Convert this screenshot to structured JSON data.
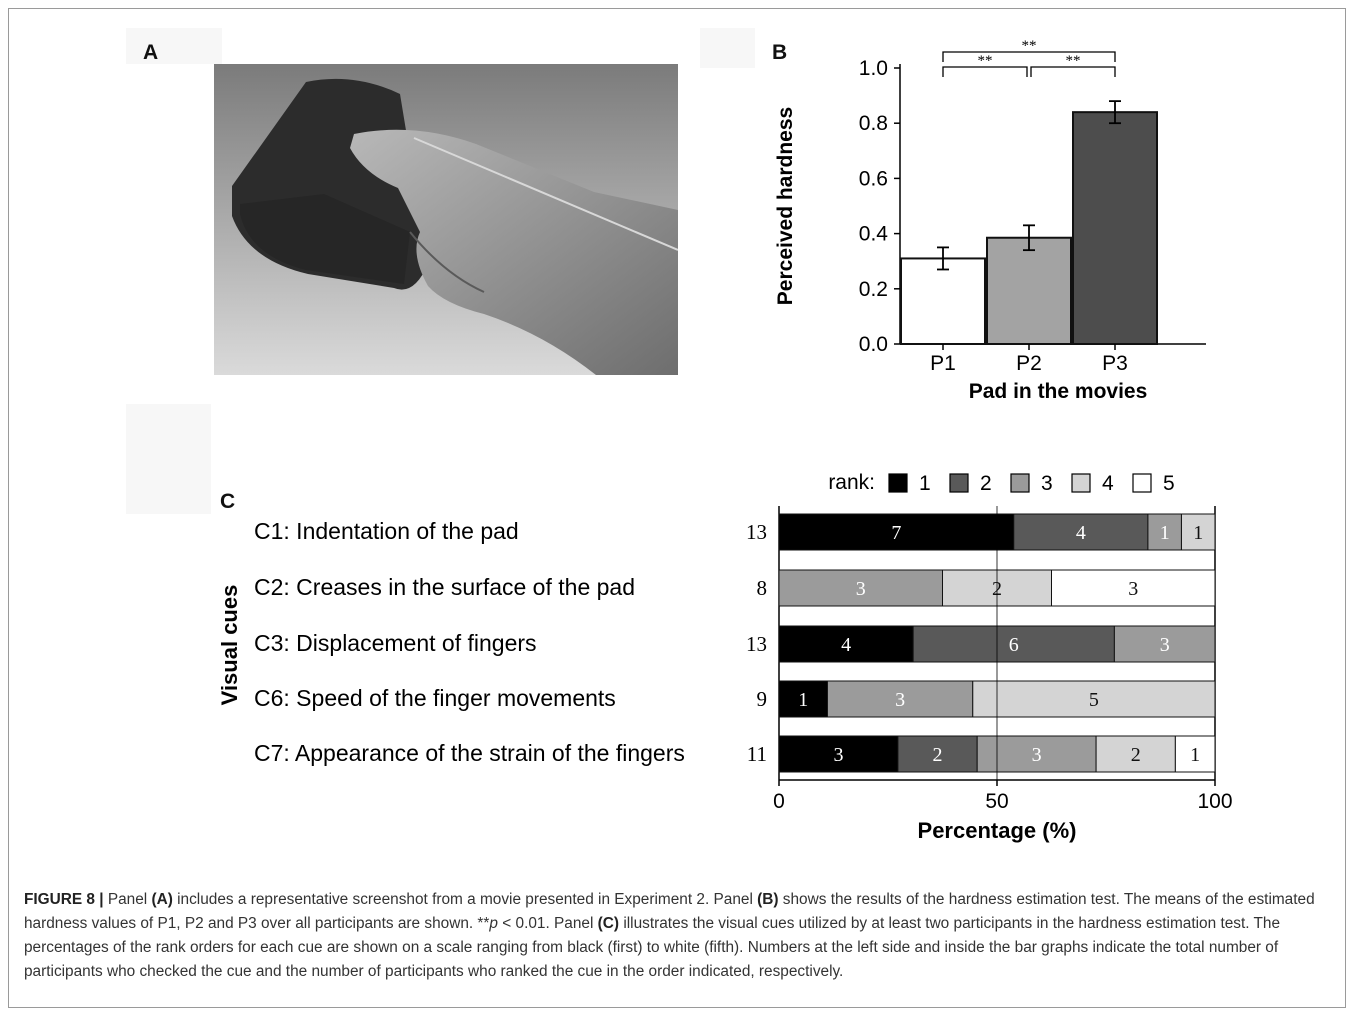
{
  "figure": {
    "panel_a_letter": "A",
    "panel_b_letter": "B",
    "panel_c_letter": "C"
  },
  "chart_data": [
    {
      "type": "bar",
      "panel": "B",
      "categories": [
        "P1",
        "P2",
        "P3"
      ],
      "values": [
        0.31,
        0.385,
        0.84
      ],
      "errors": [
        0.04,
        0.045,
        0.04
      ],
      "bar_colors": [
        "#ffffff",
        "#a3a3a3",
        "#4d4d4d"
      ],
      "xlabel": "Pad in the movies",
      "ylabel": "Perceived hardness",
      "ylim": [
        0,
        1.0
      ],
      "yticks": [
        "0.0",
        "0.2",
        "0.4",
        "0.6",
        "0.8",
        "1.0"
      ],
      "significance": [
        {
          "from": "P1",
          "to": "P2",
          "label": "**"
        },
        {
          "from": "P2",
          "to": "P3",
          "label": "**"
        },
        {
          "from": "P1",
          "to": "P3",
          "label": "**"
        }
      ]
    },
    {
      "type": "bar",
      "panel": "C",
      "orientation": "horizontal-stacked",
      "categories": [
        "C1: Indentation of the pad",
        "C2: Creases in the surface of the pad",
        "C3: Displacement of fingers",
        "C6: Speed of the finger movements",
        "C7: Appearance of the strain of the fingers"
      ],
      "totals": [
        13,
        8,
        13,
        9,
        11
      ],
      "counts": [
        [
          7,
          4,
          1,
          1,
          0
        ],
        [
          0,
          0,
          3,
          2,
          3
        ],
        [
          4,
          6,
          3,
          0,
          0
        ],
        [
          1,
          0,
          3,
          5,
          0
        ],
        [
          3,
          2,
          3,
          2,
          1
        ]
      ],
      "legend_title": "rank:",
      "legend_labels": [
        "1",
        "2",
        "3",
        "4",
        "5"
      ],
      "rank_colors": [
        "#000000",
        "#595959",
        "#9b9b9b",
        "#d4d4d4",
        "#ffffff"
      ],
      "ylabel": "Visual cues",
      "xlabel": "Percentage (%)",
      "xlim": [
        0,
        100
      ],
      "xticks": [
        "0",
        "50",
        "100"
      ]
    }
  ],
  "caption": {
    "figure_label": "FIGURE 8 |",
    "s1": " Panel ",
    "a": "(A)",
    "s2": " includes a representative screenshot from a movie presented in Experiment 2. Panel ",
    "b": "(B)",
    "s3": " shows the results of the hardness estimation test. The means of the estimated hardness values of P1, P2 and P3 over all participants are shown. **",
    "p": "p",
    "s4": " < 0.01. Panel ",
    "c": "(C)",
    "s5": " illustrates the visual cues utilized by at least two participants in the hardness estimation test. The percentages of the rank orders for each cue are shown on a scale ranging from black (first) to white (fifth). Numbers at the left side and inside the bar graphs indicate the total number of participants who checked the cue and the number of participants who ranked the cue in the order indicated, respectively."
  }
}
